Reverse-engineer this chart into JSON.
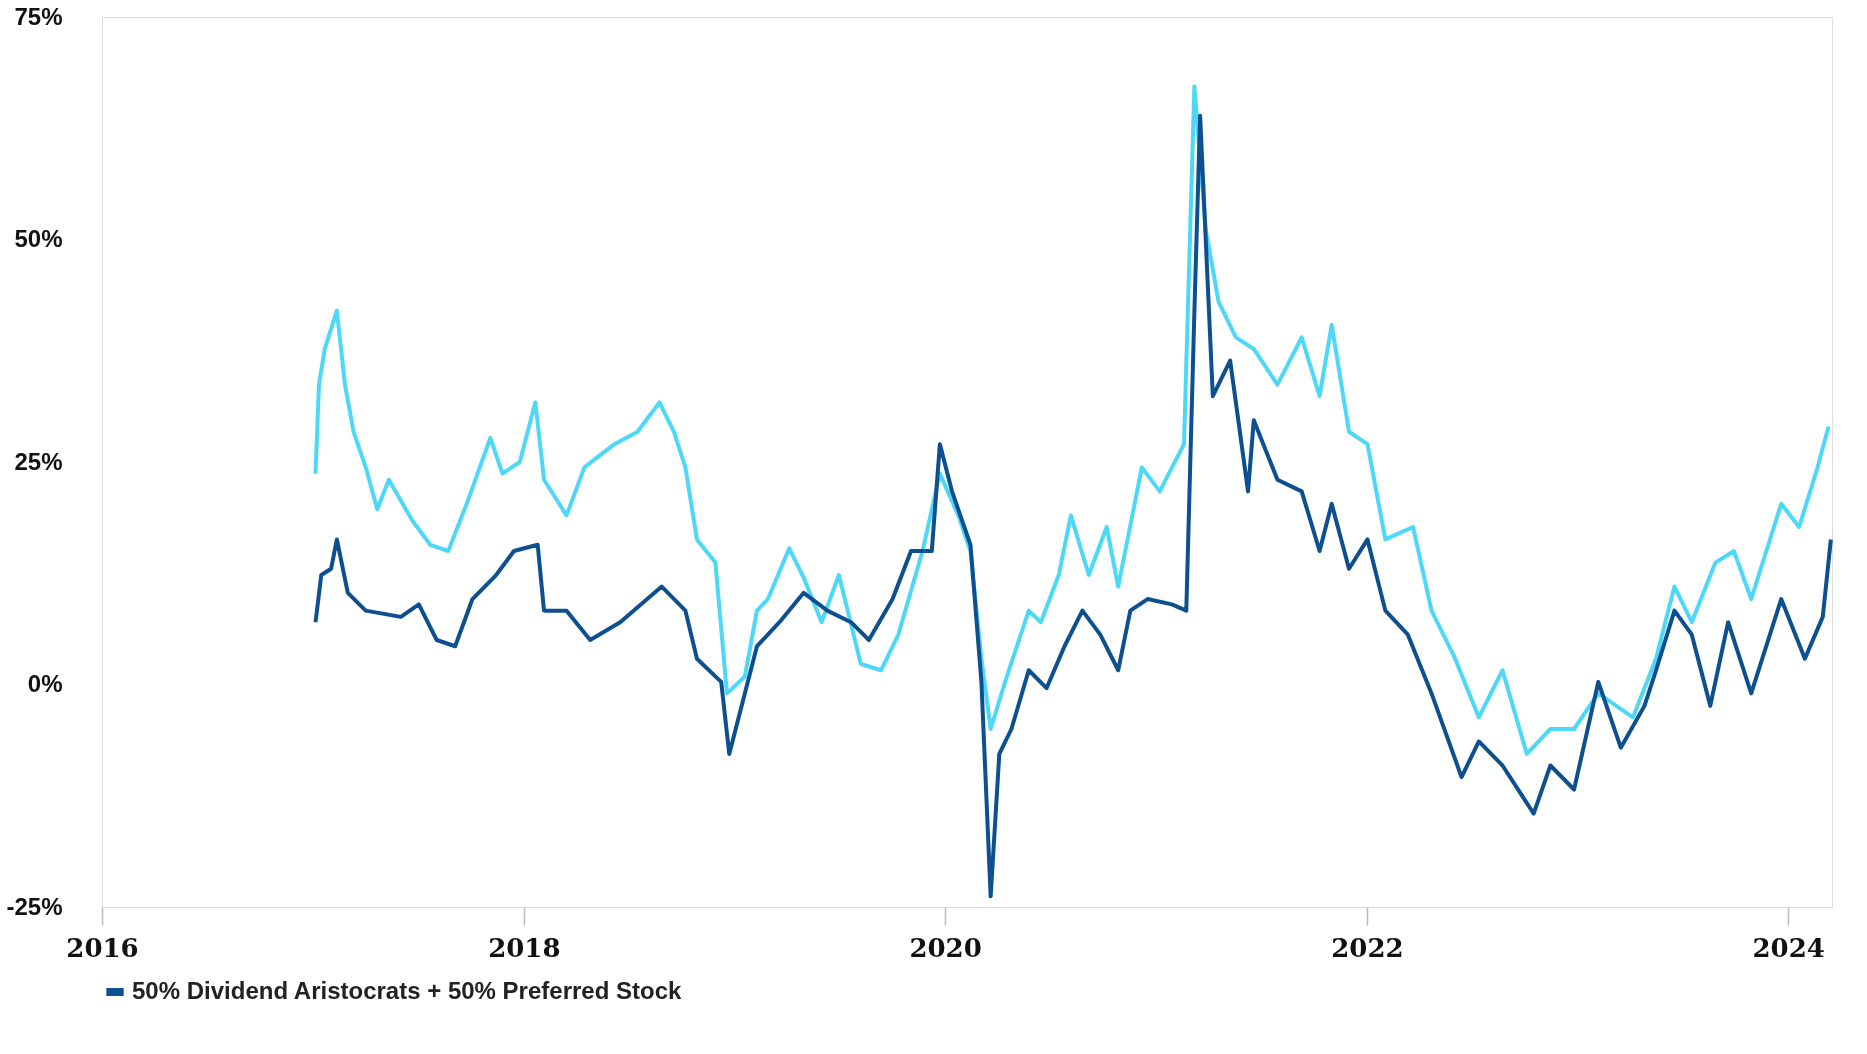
{
  "chart_data": {
    "type": "line",
    "xlim": [
      "2016-01-01",
      "2024-03-17"
    ],
    "xticks": [
      {
        "value": "2016-01-01",
        "label": "2016"
      },
      {
        "value": "2018-01-01",
        "label": "2018"
      },
      {
        "value": "2020-01-01",
        "label": "2020"
      },
      {
        "value": "2022-01-01",
        "label": "2022"
      },
      {
        "value": "2024-01-01",
        "label": "2024"
      }
    ],
    "ylim": [
      -25,
      75
    ],
    "yticks": [
      {
        "value": -25,
        "label": "-25%"
      },
      {
        "value": 0,
        "label": "0%"
      },
      {
        "value": 25,
        "label": "25%"
      },
      {
        "value": 50,
        "label": "50%"
      },
      {
        "value": 75,
        "label": "75%"
      }
    ],
    "grid": false,
    "legend": "bottom",
    "line_style": "solid",
    "marker": "none",
    "series": [
      {
        "color": "#4dd8f7",
        "x": [
          "2017-01-05",
          "2017-01-11",
          "2017-01-21",
          "2017-02-11",
          "2017-02-25",
          "2017-03-12",
          "2017-04-02",
          "2017-04-22",
          "2017-05-12",
          "2017-06-23",
          "2017-07-23",
          "2017-08-23",
          "2017-09-24",
          "2017-11-04",
          "2017-11-25",
          "2017-12-25",
          "2018-01-21",
          "2018-02-05",
          "2018-03-16",
          "2018-04-16",
          "2018-06-07",
          "2018-07-17",
          "2018-08-24",
          "2018-09-18",
          "2018-10-08",
          "2018-10-28",
          "2018-11-29",
          "2018-12-19",
          "2019-01-19",
          "2019-02-09",
          "2019-02-28",
          "2019-04-06",
          "2019-05-01",
          "2019-06-01",
          "2019-07-01",
          "2019-08-08",
          "2019-09-12",
          "2019-10-12",
          "2019-11-23",
          "2019-12-23",
          "2020-01-24",
          "2020-02-14",
          "2020-03-04",
          "2020-03-20",
          "2020-04-14",
          "2020-05-25",
          "2020-06-15",
          "2020-07-16",
          "2020-08-06",
          "2020-09-06",
          "2020-10-07",
          "2020-10-27",
          "2020-12-07",
          "2021-01-07",
          "2021-02-18",
          "2021-03-08",
          "2021-03-28",
          "2021-04-19",
          "2021-05-19",
          "2021-06-19",
          "2021-07-30",
          "2021-09-10",
          "2021-10-11",
          "2021-11-01",
          "2021-12-01",
          "2022-01-02",
          "2022-02-02",
          "2022-03-22",
          "2022-04-23",
          "2022-06-03",
          "2022-07-14",
          "2022-08-24",
          "2022-10-05",
          "2022-11-15",
          "2022-12-26",
          "2023-02-06",
          "2023-04-07",
          "2023-05-17",
          "2023-06-18",
          "2023-07-18",
          "2023-08-28",
          "2023-09-29",
          "2023-10-29",
          "2023-12-20",
          "2024-01-20",
          "2024-02-21",
          "2024-03-11"
        ],
        "values": [
          23.7,
          33.7,
          37.7,
          42,
          33.7,
          28.4,
          24.4,
          19.7,
          23,
          18.3,
          15.7,
          15,
          20.3,
          27.7,
          23.7,
          25,
          31.7,
          23,
          19,
          24.4,
          27,
          28.4,
          31.7,
          28.4,
          24.4,
          16.3,
          13.7,
          -1,
          0.9,
          8.3,
          9.6,
          15.3,
          12,
          7,
          12.3,
          2.3,
          1.6,
          5.6,
          15,
          23.7,
          19,
          15,
          2.9,
          -5,
          0.3,
          8.3,
          7,
          12.3,
          19,
          12.3,
          17.7,
          11,
          24.4,
          21.7,
          27,
          67.2,
          51,
          43,
          39,
          37.7,
          33.7,
          39,
          32.4,
          40.4,
          28.4,
          27,
          16.3,
          17.7,
          8.3,
          2.9,
          -3.7,
          1.6,
          -7.8,
          -5,
          -5,
          -1,
          -3.7,
          2.9,
          11,
          7,
          13.7,
          15,
          9.6,
          20.3,
          17.7,
          24.4,
          29
        ]
      },
      {
        "name": "50% Dividend Aristocrats + 50% Preferred Stock",
        "color": "#0e4f8f",
        "x": [
          "2017-01-05",
          "2017-01-15",
          "2017-02-01",
          "2017-02-11",
          "2017-03-02",
          "2017-04-02",
          "2017-06-02",
          "2017-07-03",
          "2017-08-03",
          "2017-09-04",
          "2017-10-04",
          "2017-11-14",
          "2017-12-15",
          "2018-01-25",
          "2018-02-05",
          "2018-03-16",
          "2018-04-26",
          "2018-06-17",
          "2018-08-28",
          "2018-10-08",
          "2018-10-28",
          "2018-12-09",
          "2018-12-23",
          "2019-01-19",
          "2019-02-09",
          "2019-03-20",
          "2019-05-01",
          "2019-06-11",
          "2019-07-22",
          "2019-08-22",
          "2019-10-02",
          "2019-11-03",
          "2019-12-09",
          "2019-12-23",
          "2020-01-13",
          "2020-02-14",
          "2020-03-04",
          "2020-03-20",
          "2020-04-04",
          "2020-04-25",
          "2020-05-25",
          "2020-06-25",
          "2020-07-26",
          "2020-08-26",
          "2020-09-26",
          "2020-10-27",
          "2020-11-17",
          "2020-12-17",
          "2021-01-28",
          "2021-02-22",
          "2021-03-08",
          "2021-03-18",
          "2021-04-09",
          "2021-05-09",
          "2021-06-09",
          "2021-06-19",
          "2021-07-30",
          "2021-09-10",
          "2021-10-11",
          "2021-11-01",
          "2021-12-01",
          "2022-01-02",
          "2022-02-02",
          "2022-03-13",
          "2022-04-23",
          "2022-06-14",
          "2022-07-14",
          "2022-08-24",
          "2022-10-17",
          "2022-11-15",
          "2022-12-26",
          "2023-02-06",
          "2023-03-17",
          "2023-04-27",
          "2023-05-17",
          "2023-06-18",
          "2023-07-18",
          "2023-08-19",
          "2023-09-19",
          "2023-10-29",
          "2023-12-20",
          "2024-01-30",
          "2024-03-01",
          "2024-03-15"
        ],
        "values": [
          7,
          12.3,
          13,
          16.3,
          10.3,
          8.3,
          7.6,
          9,
          5,
          4.3,
          9.6,
          12.3,
          15,
          15.7,
          8.3,
          8.3,
          5,
          7,
          11,
          8.3,
          2.9,
          0.3,
          -7.8,
          -1,
          4.3,
          7,
          10.3,
          8.3,
          7,
          5,
          9.6,
          15,
          15,
          27,
          21.7,
          15.7,
          0.3,
          -23.8,
          -7.8,
          -5,
          1.6,
          -0.4,
          4.3,
          8.3,
          5.6,
          1.6,
          8.3,
          9.6,
          9,
          8.3,
          41.8,
          63.9,
          32.4,
          36.4,
          21.7,
          29.7,
          23,
          21.7,
          15,
          20.3,
          13,
          16.3,
          8.3,
          5.6,
          -1,
          -10.4,
          -6.4,
          -9.1,
          -14.5,
          -9.1,
          -11.8,
          0.3,
          -7.1,
          -2.4,
          1.6,
          8.3,
          5.6,
          -2.4,
          7,
          -1,
          9.6,
          2.9,
          7.6,
          16.3
        ]
      }
    ]
  }
}
